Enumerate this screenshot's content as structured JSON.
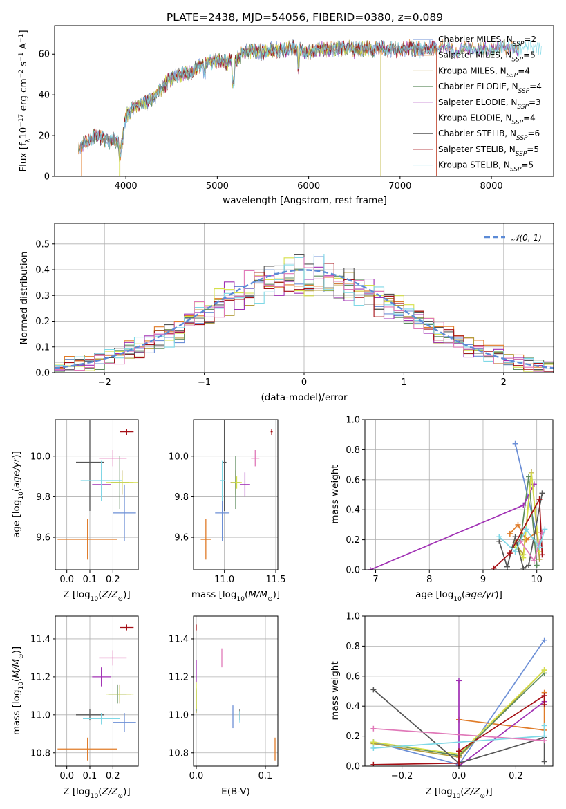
{
  "page_title": "PLATE=2438, MJD=54056, FIBERID=0380, z=0.089",
  "chart_data": [
    {
      "id": "spectrum",
      "type": "line",
      "xlabel": "wavelength [Angstrom, rest frame]",
      "ylabel": "Flux [f_λ 10^-17 erg cm^-2 s^-1 A^-1]",
      "xlim": [
        3220,
        8680
      ],
      "ylim": [
        0,
        74
      ],
      "xticks": [
        4000,
        5000,
        6000,
        7000,
        8000
      ],
      "yticks": [
        0,
        20,
        40,
        60
      ],
      "grid": false,
      "legend_position": "top-right",
      "continuum": {
        "x": [
          3480,
          3600,
          3700,
          3800,
          3880,
          3950,
          4000,
          4100,
          4200,
          4300,
          4400,
          4500,
          4600,
          4700,
          4800,
          4900,
          5000,
          5100,
          5200,
          5300,
          5400,
          5500,
          5600,
          5700,
          5800,
          5900,
          6000,
          6100,
          6200,
          6300,
          6400,
          6500,
          6600,
          6700,
          6800,
          6900,
          7000,
          7100,
          7200,
          7300,
          7400,
          7500,
          7600,
          7700,
          7800,
          7900,
          8000,
          8100,
          8200,
          8300,
          8400,
          8500,
          8550
        ],
        "y": [
          14,
          18,
          20,
          17,
          18,
          14,
          30,
          34,
          36,
          38,
          44,
          48,
          50,
          51,
          54,
          56,
          57,
          56,
          57,
          61,
          62,
          61,
          62,
          62,
          63,
          62,
          61,
          62,
          62,
          63,
          63,
          62,
          63,
          62,
          63,
          62,
          62,
          63,
          62,
          63,
          63,
          64,
          61,
          63,
          62,
          63,
          62,
          64,
          63,
          62,
          64,
          63,
          63
        ]
      },
      "series": [
        {
          "name": "Chabrier MILES, N_SSP=2",
          "color": "#6c8fd6"
        },
        {
          "name": "Salpeter MILES, N_SSP=5",
          "color": "#e07b28"
        },
        {
          "name": "Kroupa MILES, N_SSP=4",
          "color": "#b39d3c"
        },
        {
          "name": "Chabrier ELODIE, N_SSP=4",
          "color": "#5e8c5e"
        },
        {
          "name": "Salpeter ELODIE, N_SSP=3",
          "color": "#a030b4"
        },
        {
          "name": "Kroupa ELODIE, N_SSP=4",
          "color": "#d6e04a"
        },
        {
          "name": "Chabrier STELIB, N_SSP=6",
          "color": "#555555"
        },
        {
          "name": "Salpeter STELIB, N_SSP=5",
          "color": "#a50f15"
        },
        {
          "name": "Kroupa STELIB, N_SSP=5",
          "color": "#7fd8e6"
        }
      ]
    },
    {
      "id": "residual-histogram",
      "type": "line",
      "xlabel": "(data-model)/error",
      "ylabel": "Normed distribution",
      "xlim": [
        -2.5,
        2.5
      ],
      "ylim": [
        0,
        0.58
      ],
      "xticks": [
        -2,
        -1,
        0,
        1,
        2
      ],
      "yticks": [
        0.0,
        0.1,
        0.2,
        0.3,
        0.4,
        0.5
      ],
      "grid": true,
      "legend_position": "top-right",
      "legend": [
        "𝒩(0, 1)"
      ],
      "bin_width": 0.1,
      "gaussian": {
        "mean": 0,
        "sigma": 1,
        "color": "#5b8ad6"
      },
      "hist_colors": [
        "#6c8fd6",
        "#e07b28",
        "#b39d3c",
        "#5e8c5e",
        "#a030b4",
        "#d6e04a",
        "#555555",
        "#a50f15",
        "#7fd8e6",
        "#e078b8"
      ]
    },
    {
      "id": "age-vs-Z",
      "type": "scatter",
      "xlabel": "Z [log10(Z/Z⊙)]",
      "ylabel": "age [log10(age/yr)]",
      "xlim": [
        -0.05,
        0.31
      ],
      "ylim": [
        9.44,
        10.18
      ],
      "xticks": [
        0.0,
        0.1,
        0.2
      ],
      "yticks": [
        9.6,
        9.8,
        10.0
      ],
      "grid": true,
      "points": [
        {
          "x": 0.25,
          "y": 9.72,
          "xerr": 0.05,
          "yerr": 0.14,
          "color": "#6c8fd6"
        },
        {
          "x": 0.09,
          "y": 9.59,
          "xerr": 0.13,
          "yerr": 0.1,
          "color": "#e07b28"
        },
        {
          "x": 0.24,
          "y": 9.87,
          "xerr": 0.05,
          "yerr": 0.06,
          "color": "#b39d3c"
        },
        {
          "x": 0.23,
          "y": 9.87,
          "xerr": 0.04,
          "yerr": 0.13,
          "color": "#5e8c5e"
        },
        {
          "x": 0.15,
          "y": 9.86,
          "xerr": 0.04,
          "yerr": 0.06,
          "color": "#a030b4"
        },
        {
          "x": 0.24,
          "y": 9.87,
          "xerr": 0.07,
          "yerr": 0.03,
          "color": "#d6e04a"
        },
        {
          "x": 0.1,
          "y": 9.97,
          "xerr": 0.06,
          "yerr": 0.24,
          "color": "#555555"
        },
        {
          "x": 0.26,
          "y": 10.12,
          "xerr": 0.03,
          "yerr": 0.015,
          "color": "#a50f15"
        },
        {
          "x": 0.15,
          "y": 9.88,
          "xerr": 0.09,
          "yerr": 0.1,
          "color": "#7fd8e6"
        },
        {
          "x": 0.2,
          "y": 9.99,
          "xerr": 0.06,
          "yerr": 0.04,
          "color": "#e078b8"
        }
      ]
    },
    {
      "id": "age-vs-mass",
      "type": "scatter",
      "xlabel": "mass [log10(M/M⊙)]",
      "ylabel": "",
      "xlim": [
        10.7,
        11.52
      ],
      "ylim": [
        9.44,
        10.18
      ],
      "xticks": [
        11.0,
        11.5
      ],
      "yticks": [
        9.6,
        9.8,
        10.0
      ],
      "grid": true,
      "points": [
        {
          "x": 10.98,
          "y": 9.72,
          "xerr": 0.07,
          "yerr": 0.14,
          "color": "#6c8fd6"
        },
        {
          "x": 10.82,
          "y": 9.59,
          "xerr": 0.05,
          "yerr": 0.1,
          "color": "#e07b28"
        },
        {
          "x": 11.11,
          "y": 9.87,
          "xerr": 0.05,
          "yerr": 0.06,
          "color": "#b39d3c"
        },
        {
          "x": 11.11,
          "y": 9.87,
          "xerr": 0.04,
          "yerr": 0.13,
          "color": "#5e8c5e"
        },
        {
          "x": 11.2,
          "y": 9.86,
          "xerr": 0.05,
          "yerr": 0.06,
          "color": "#a030b4"
        },
        {
          "x": 11.12,
          "y": 9.87,
          "xerr": 0.05,
          "yerr": 0.03,
          "color": "#d6e04a"
        },
        {
          "x": 11.0,
          "y": 9.97,
          "xerr": 0.02,
          "yerr": 0.24,
          "color": "#555555"
        },
        {
          "x": 11.46,
          "y": 10.12,
          "xerr": 0.01,
          "yerr": 0.015,
          "color": "#a50f15"
        },
        {
          "x": 10.98,
          "y": 9.88,
          "xerr": 0.02,
          "yerr": 0.1,
          "color": "#7fd8e6"
        },
        {
          "x": 11.3,
          "y": 9.99,
          "xerr": 0.04,
          "yerr": 0.04,
          "color": "#e078b8"
        }
      ]
    },
    {
      "id": "mass-weight-vs-age",
      "type": "line",
      "xlabel": "age [log10(age/yr)]",
      "ylabel": "mass weight",
      "xlim": [
        6.8,
        10.3
      ],
      "ylim": [
        0,
        1.0
      ],
      "xticks": [
        7,
        8,
        9,
        10
      ],
      "yticks": [
        0.0,
        0.2,
        0.4,
        0.6,
        0.8,
        1.0
      ],
      "grid": true,
      "series": [
        {
          "color": "#6c8fd6",
          "x": [
            9.6,
            10.05
          ],
          "y": [
            0.84,
            0.16
          ]
        },
        {
          "color": "#e07b28",
          "x": [
            9.5,
            9.65,
            9.8,
            10.0
          ],
          "y": [
            0.24,
            0.3,
            0.2,
            0.25
          ]
        },
        {
          "color": "#b39d3c",
          "x": [
            9.6,
            9.75,
            9.9,
            10.05
          ],
          "y": [
            0.18,
            0.1,
            0.65,
            0.07
          ]
        },
        {
          "color": "#5e8c5e",
          "x": [
            9.55,
            9.7,
            9.85,
            10.0
          ],
          "y": [
            0.15,
            0.2,
            0.62,
            0.03
          ]
        },
        {
          "color": "#a030b4",
          "x": [
            6.9,
            9.75,
            9.95
          ],
          "y": [
            0.0,
            0.43,
            0.57
          ]
        },
        {
          "color": "#d6e04a",
          "x": [
            9.6,
            9.75,
            9.9,
            10.05
          ],
          "y": [
            0.16,
            0.08,
            0.64,
            0.12
          ]
        },
        {
          "color": "#555555",
          "x": [
            9.3,
            9.45,
            9.6,
            9.75,
            9.85,
            10.1
          ],
          "y": [
            0.19,
            0.02,
            0.22,
            0.01,
            0.03,
            0.51
          ]
        },
        {
          "color": "#a50f15",
          "x": [
            9.2,
            9.5,
            10.05,
            10.1
          ],
          "y": [
            0.01,
            0.11,
            0.47,
            0.1
          ]
        },
        {
          "color": "#7fd8e6",
          "x": [
            9.3,
            9.6,
            9.8,
            10.05,
            10.15
          ],
          "y": [
            0.22,
            0.12,
            0.27,
            0.15,
            0.27
          ]
        },
        {
          "color": "#e078b8",
          "x": [
            9.7,
            9.95,
            10.1
          ],
          "y": [
            0.19,
            0.06,
            0.25
          ]
        }
      ]
    },
    {
      "id": "mass-vs-Z",
      "type": "scatter",
      "xlabel": "Z [log10(Z/Z⊙)]",
      "ylabel": "mass [log10(M/M⊙)]",
      "xlim": [
        -0.05,
        0.31
      ],
      "ylim": [
        10.73,
        11.52
      ],
      "xticks": [
        0.0,
        0.1,
        0.2
      ],
      "yticks": [
        10.8,
        11.0,
        11.2,
        11.4
      ],
      "grid": true,
      "points": [
        {
          "x": 0.25,
          "y": 10.96,
          "xerr": 0.05,
          "yerr": 0.05,
          "color": "#6c8fd6"
        },
        {
          "x": 0.09,
          "y": 10.82,
          "xerr": 0.13,
          "yerr": 0.06,
          "color": "#e07b28"
        },
        {
          "x": 0.23,
          "y": 11.11,
          "xerr": 0.05,
          "yerr": 0.05,
          "color": "#b39d3c"
        },
        {
          "x": 0.22,
          "y": 11.11,
          "xerr": 0.04,
          "yerr": 0.05,
          "color": "#5e8c5e"
        },
        {
          "x": 0.15,
          "y": 11.2,
          "xerr": 0.04,
          "yerr": 0.05,
          "color": "#a030b4"
        },
        {
          "x": 0.23,
          "y": 11.11,
          "xerr": 0.06,
          "yerr": 0.03,
          "color": "#d6e04a"
        },
        {
          "x": 0.1,
          "y": 11.0,
          "xerr": 0.06,
          "yerr": 0.03,
          "color": "#555555"
        },
        {
          "x": 0.26,
          "y": 11.46,
          "xerr": 0.03,
          "yerr": 0.015,
          "color": "#a50f15"
        },
        {
          "x": 0.15,
          "y": 10.98,
          "xerr": 0.08,
          "yerr": 0.03,
          "color": "#7fd8e6"
        },
        {
          "x": 0.2,
          "y": 11.3,
          "xerr": 0.06,
          "yerr": 0.04,
          "color": "#e078b8"
        }
      ]
    },
    {
      "id": "mass-vs-EBV",
      "type": "scatter",
      "xlabel": "E(B-V)",
      "ylabel": "",
      "xlim": [
        -0.004,
        0.118
      ],
      "ylim": [
        10.73,
        11.52
      ],
      "xticks": [
        0.0,
        0.1
      ],
      "yticks": [
        10.8,
        11.0,
        11.2,
        11.4
      ],
      "grid": true,
      "points": [
        {
          "x": 0.053,
          "y": 10.99,
          "yerr": 0.06,
          "color": "#6c8fd6"
        },
        {
          "x": 0.114,
          "y": 10.82,
          "yerr": 0.06,
          "color": "#e07b28"
        },
        {
          "x": 0.0,
          "y": 11.07,
          "yerr": 0.06,
          "color": "#b39d3c"
        },
        {
          "x": 0.0,
          "y": 11.08,
          "yerr": 0.06,
          "color": "#5e8c5e"
        },
        {
          "x": 0.0,
          "y": 11.23,
          "yerr": 0.06,
          "color": "#a030b4"
        },
        {
          "x": 0.0,
          "y": 11.1,
          "yerr": 0.07,
          "color": "#d6e04a"
        },
        {
          "x": 0.063,
          "y": 11.0,
          "yerr": 0.03,
          "color": "#555555"
        },
        {
          "x": 0.0,
          "y": 11.46,
          "yerr": 0.015,
          "color": "#a50f15"
        },
        {
          "x": 0.063,
          "y": 10.99,
          "yerr": 0.03,
          "color": "#7fd8e6"
        },
        {
          "x": 0.037,
          "y": 11.3,
          "yerr": 0.05,
          "color": "#e078b8"
        }
      ]
    },
    {
      "id": "mass-weight-vs-Z",
      "type": "line",
      "xlabel": "Z [log10(Z/Z⊙)]",
      "ylabel": "mass weight",
      "xlim": [
        -0.33,
        0.33
      ],
      "ylim": [
        0,
        1.0
      ],
      "xticks": [
        -0.2,
        0.0,
        0.2
      ],
      "yticks": [
        0.0,
        0.2,
        0.4,
        0.6,
        0.8,
        1.0
      ],
      "grid": true,
      "series": [
        {
          "color": "#6c8fd6",
          "x": [
            -0.3,
            0.0,
            0.3
          ],
          "y": [
            0.16,
            0.01,
            0.84
          ]
        },
        {
          "color": "#e07b28",
          "x": [
            0.0,
            0.3,
            0.3
          ],
          "y": [
            0.31,
            0.24,
            0.49
          ]
        },
        {
          "color": "#b39d3c",
          "x": [
            -0.3,
            0.0,
            0.3
          ],
          "y": [
            0.15,
            0.06,
            0.64
          ]
        },
        {
          "color": "#5e8c5e",
          "x": [
            -0.3,
            0.0,
            0.3
          ],
          "y": [
            0.16,
            0.07,
            0.62
          ]
        },
        {
          "color": "#a030b4",
          "x": [
            0.0,
            0.0,
            0.3
          ],
          "y": [
            0.57,
            0.0,
            0.43
          ]
        },
        {
          "color": "#d6e04a",
          "x": [
            -0.3,
            0.0,
            0.3
          ],
          "y": [
            0.16,
            0.08,
            0.64
          ]
        },
        {
          "color": "#555555",
          "x": [
            -0.3,
            0.0,
            0.3,
            0.3
          ],
          "y": [
            0.51,
            0.02,
            0.19,
            0.03
          ]
        },
        {
          "color": "#a50f15",
          "x": [
            -0.3,
            0.0,
            0.0,
            0.3,
            0.3
          ],
          "y": [
            0.01,
            0.02,
            0.1,
            0.47,
            0.41
          ]
        },
        {
          "color": "#7fd8e6",
          "x": [
            -0.3,
            0.3,
            0.3
          ],
          "y": [
            0.12,
            0.2,
            0.27
          ]
        },
        {
          "color": "#e078b8",
          "x": [
            -0.3,
            0.3
          ],
          "y": [
            0.25,
            0.17
          ]
        }
      ]
    }
  ]
}
